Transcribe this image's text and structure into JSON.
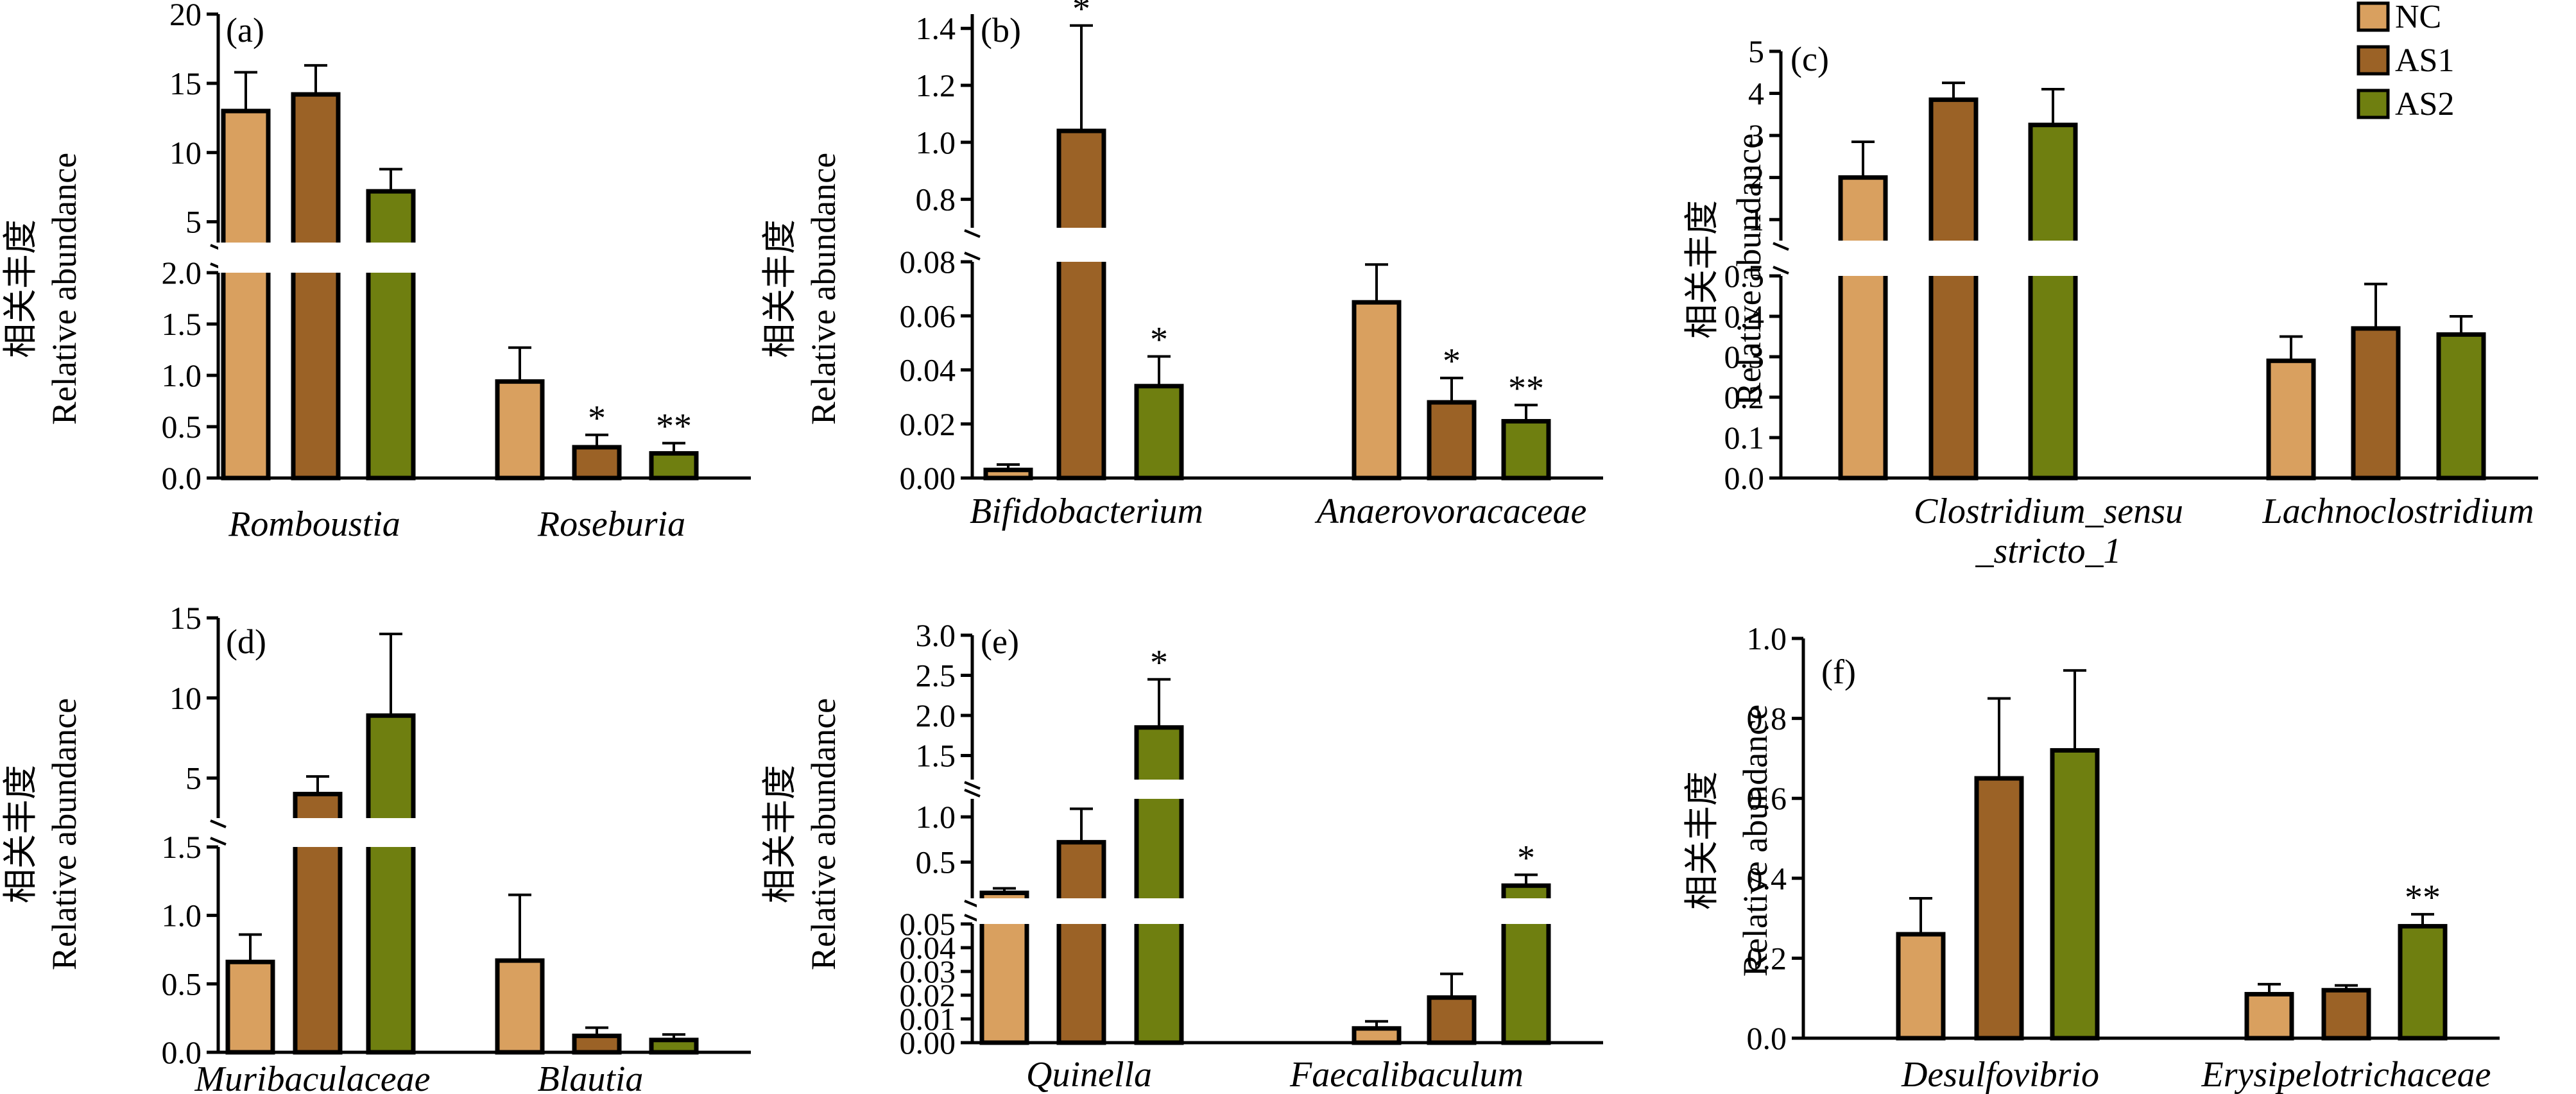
{
  "figure": {
    "ylabel_cn": "相关丰度",
    "ylabel_en": "Relative abundance"
  },
  "legend": [
    {
      "name": "NC",
      "color": "#d9a05f"
    },
    {
      "name": "AS1",
      "color": "#9b6226"
    },
    {
      "name": "AS2",
      "color": "#6f7f10"
    }
  ],
  "chart_data": [
    {
      "panel": "(a)",
      "type": "bar",
      "series": [
        "NC",
        "AS1",
        "AS2"
      ],
      "broken_axis": true,
      "ylim_lower": [
        0,
        2.0
      ],
      "yticks_lower": [
        "0.0",
        "0.5",
        "1.0",
        "1.5",
        "2.0"
      ],
      "ylim_upper": [
        3.5,
        20
      ],
      "yticks_upper": [
        "5",
        "10",
        "15",
        "20"
      ],
      "groups": [
        {
          "category": "Romboustia",
          "bars": [
            {
              "series": "NC",
              "value": 13.0,
              "err": 2.8,
              "sig": ""
            },
            {
              "series": "AS1",
              "value": 14.2,
              "err": 2.1,
              "sig": ""
            },
            {
              "series": "AS2",
              "value": 7.2,
              "err": 1.6,
              "sig": ""
            }
          ]
        },
        {
          "category": "Roseburia",
          "bars": [
            {
              "series": "NC",
              "value": 0.94,
              "err": 0.33,
              "sig": ""
            },
            {
              "series": "AS1",
              "value": 0.3,
              "err": 0.12,
              "sig": "*"
            },
            {
              "series": "AS2",
              "value": 0.24,
              "err": 0.1,
              "sig": "**"
            }
          ]
        }
      ]
    },
    {
      "panel": "(b)",
      "type": "bar",
      "series": [
        "NC",
        "AS1",
        "AS2"
      ],
      "broken_axis": true,
      "ylim_lower": [
        0,
        0.08
      ],
      "yticks_lower": [
        "0.00",
        "0.02",
        "0.04",
        "0.06",
        "0.08"
      ],
      "ylim_upper": [
        0.7,
        1.45
      ],
      "yticks_upper": [
        "0.8",
        "1.0",
        "1.2",
        "1.4"
      ],
      "groups": [
        {
          "category": "Bifidobacterium",
          "bars": [
            {
              "series": "NC",
              "value": 0.003,
              "err": 0.002,
              "sig": ""
            },
            {
              "series": "AS1",
              "value": 1.04,
              "err": 0.37,
              "sig": "*"
            },
            {
              "series": "AS2",
              "value": 0.034,
              "err": 0.011,
              "sig": "*"
            }
          ]
        },
        {
          "category": "Anaerovoracaceae",
          "bars": [
            {
              "series": "NC",
              "value": 0.065,
              "err": 0.014,
              "sig": ""
            },
            {
              "series": "AS1",
              "value": 0.028,
              "err": 0.009,
              "sig": "*"
            },
            {
              "series": "AS2",
              "value": 0.021,
              "err": 0.006,
              "sig": "**"
            }
          ]
        }
      ]
    },
    {
      "panel": "(c)",
      "type": "bar",
      "series": [
        "NC",
        "AS1",
        "AS2"
      ],
      "broken_axis": true,
      "ylim_lower": [
        0,
        0.5
      ],
      "yticks_lower": [
        "0.0",
        "0.1",
        "0.2",
        "0.3",
        "0.4",
        "0.5"
      ],
      "ylim_upper": [
        0.5,
        5
      ],
      "yticks_upper": [
        "1",
        "2",
        "3",
        "4",
        "5"
      ],
      "groups": [
        {
          "category": "Clostridium_sensu _stricto_1",
          "category_lines": [
            "Clostridium_sensu",
            "_stricto_1"
          ],
          "bars": [
            {
              "series": "NC",
              "value": 2.0,
              "err": 0.85,
              "sig": ""
            },
            {
              "series": "AS1",
              "value": 3.85,
              "err": 0.4,
              "sig": ""
            },
            {
              "series": "AS2",
              "value": 3.25,
              "err": 0.85,
              "sig": ""
            }
          ]
        },
        {
          "category": "Lachnoclostridium",
          "bars": [
            {
              "series": "NC",
              "value": 0.29,
              "err": 0.06,
              "sig": ""
            },
            {
              "series": "AS1",
              "value": 0.37,
              "err": 0.11,
              "sig": ""
            },
            {
              "series": "AS2",
              "value": 0.355,
              "err": 0.045,
              "sig": ""
            }
          ]
        }
      ]
    },
    {
      "panel": "(d)",
      "type": "bar",
      "series": [
        "NC",
        "AS1",
        "AS2"
      ],
      "broken_axis": true,
      "ylim_lower": [
        0,
        1.5
      ],
      "yticks_lower": [
        "0.0",
        "0.5",
        "1.0",
        "1.5"
      ],
      "ylim_upper": [
        2.5,
        15
      ],
      "yticks_upper": [
        "5",
        "10",
        "15"
      ],
      "groups": [
        {
          "category": "Muribaculaceae",
          "bars": [
            {
              "series": "NC",
              "value": 0.66,
              "err": 0.2,
              "sig": ""
            },
            {
              "series": "AS1",
              "value": 4.0,
              "err": 1.1,
              "sig": ""
            },
            {
              "series": "AS2",
              "value": 8.9,
              "err": 5.1,
              "sig": ""
            }
          ]
        },
        {
          "category": "Blautia",
          "bars": [
            {
              "series": "NC",
              "value": 0.67,
              "err": 0.48,
              "sig": ""
            },
            {
              "series": "AS1",
              "value": 0.12,
              "err": 0.06,
              "sig": ""
            },
            {
              "series": "AS2",
              "value": 0.09,
              "err": 0.04,
              "sig": ""
            }
          ]
        }
      ]
    },
    {
      "panel": "(e)",
      "type": "bar",
      "series": [
        "NC",
        "AS1",
        "AS2"
      ],
      "broken_axis": true,
      "ylim_lower": [
        0,
        0.05
      ],
      "yticks_lower": [
        "0.00",
        "0.01",
        "0.02",
        "0.03",
        "0.04",
        "0.05"
      ],
      "ylim_middle": [
        0.1,
        1.2
      ],
      "yticks_middle": [
        "0.5",
        "1.0"
      ],
      "ylim_upper": [
        1.2,
        3.0
      ],
      "yticks_upper": [
        "1.5",
        "2.0",
        "2.5",
        "3.0"
      ],
      "groups": [
        {
          "category": "Quinella",
          "bars": [
            {
              "series": "NC",
              "value": 0.16,
              "err": 0.05,
              "sig": ""
            },
            {
              "series": "AS1",
              "value": 0.72,
              "err": 0.37,
              "sig": ""
            },
            {
              "series": "AS2",
              "value": 1.85,
              "err": 0.6,
              "sig": "*"
            }
          ]
        },
        {
          "category": "Faecalibaculum",
          "bars": [
            {
              "series": "NC",
              "value": 0.006,
              "err": 0.003,
              "sig": ""
            },
            {
              "series": "AS1",
              "value": 0.019,
              "err": 0.01,
              "sig": ""
            },
            {
              "series": "AS2",
              "value": 0.24,
              "err": 0.12,
              "sig": "*"
            }
          ]
        }
      ]
    },
    {
      "panel": "(f)",
      "type": "bar",
      "series": [
        "NC",
        "AS1",
        "AS2"
      ],
      "broken_axis": false,
      "ylim": [
        0,
        1.0
      ],
      "yticks": [
        "0.0",
        "0.2",
        "0.4",
        "0.6",
        "0.8",
        "1.0"
      ],
      "groups": [
        {
          "category": "Desulfovibrio",
          "bars": [
            {
              "series": "NC",
              "value": 0.26,
              "err": 0.09,
              "sig": ""
            },
            {
              "series": "AS1",
              "value": 0.65,
              "err": 0.2,
              "sig": ""
            },
            {
              "series": "AS2",
              "value": 0.72,
              "err": 0.2,
              "sig": ""
            }
          ]
        },
        {
          "category": "Erysipelotrichaceae",
          "bars": [
            {
              "series": "NC",
              "value": 0.11,
              "err": 0.025,
              "sig": ""
            },
            {
              "series": "AS1",
              "value": 0.12,
              "err": 0.012,
              "sig": ""
            },
            {
              "series": "AS2",
              "value": 0.28,
              "err": 0.03,
              "sig": "**"
            }
          ]
        }
      ]
    }
  ]
}
